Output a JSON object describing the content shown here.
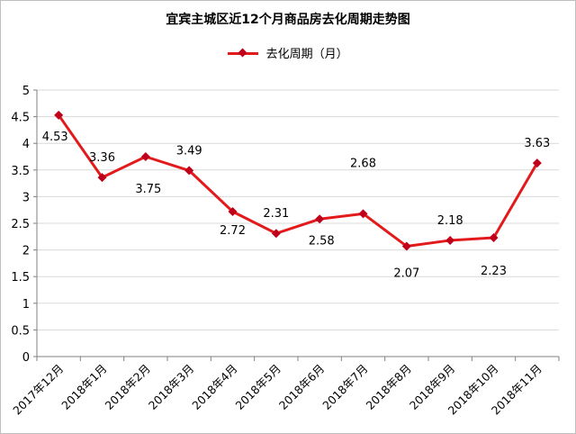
{
  "chart_data": {
    "type": "line",
    "title": "宜宾主城区近12个月商品房去化周期走势图",
    "categories": [
      "2017年12月",
      "2018年1月",
      "2018年2月",
      "2018年3月",
      "2018年4月",
      "2018年5月",
      "2018年6月",
      "2018年7月",
      "2018年8月",
      "2018年9月",
      "2018年10月",
      "2018年11月"
    ],
    "series": [
      {
        "name": "去化周期（月）",
        "values": [
          4.53,
          3.36,
          3.75,
          3.49,
          2.72,
          2.31,
          2.58,
          2.68,
          2.07,
          2.18,
          2.23,
          3.63
        ],
        "color": "#e31a1c",
        "marker_color": "#c0001a"
      }
    ],
    "data_labels": [
      "4.53",
      "3.36",
      "3.75",
      "3.49",
      "2.72",
      "2.31",
      "2.58",
      "2.68",
      "2.07",
      "2.18",
      "2.23",
      "3.63"
    ],
    "y_ticks": [
      "0",
      "0.5",
      "1",
      "1.5",
      "2",
      "2.5",
      "3",
      "3.5",
      "4",
      "4.5",
      "5"
    ],
    "ylim": [
      0,
      5
    ],
    "grid": true,
    "legend_position": "top-center"
  }
}
